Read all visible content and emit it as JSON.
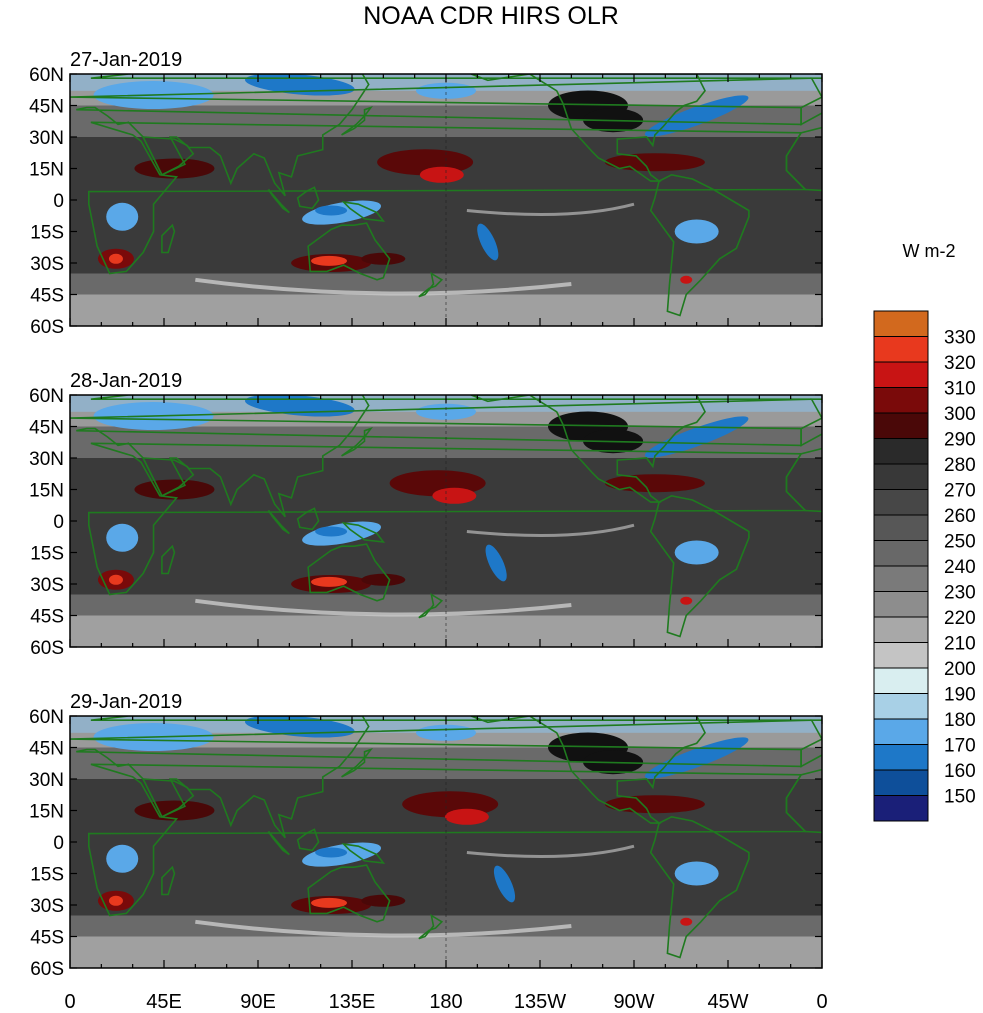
{
  "title": "NOAA CDR HIRS OLR",
  "units": "W m-2",
  "lat_ticks": [
    "60N",
    "45N",
    "30N",
    "15N",
    "0",
    "15S",
    "30S",
    "45S",
    "60S"
  ],
  "lon_ticks": [
    "0",
    "45E",
    "90E",
    "135E",
    "180",
    "135W",
    "90W",
    "45W",
    "0"
  ],
  "panels": [
    {
      "date": "27-Jan-2019"
    },
    {
      "date": "28-Jan-2019"
    },
    {
      "date": "29-Jan-2019"
    }
  ],
  "colorbar": {
    "labels": [
      "330",
      "320",
      "310",
      "300",
      "290",
      "280",
      "270",
      "260",
      "250",
      "240",
      "230",
      "220",
      "210",
      "200",
      "190",
      "180",
      "170",
      "160",
      "150"
    ],
    "colors": [
      "#d2691e",
      "#e8391e",
      "#c81414",
      "#7a0a0a",
      "#4a0808",
      "#2a2a2a",
      "#383838",
      "#474747",
      "#575757",
      "#686868",
      "#7a7a7a",
      "#8d8d8d",
      "#a8a8a8",
      "#c4c4c4",
      "#d9eef0",
      "#a8d0e6",
      "#5aa8e8",
      "#1e78c8",
      "#0e4f9a",
      "#1a1f78"
    ]
  },
  "map": {
    "land_color": "#1f7a1f",
    "extent": {
      "lon": [
        0,
        360
      ],
      "lat": [
        -60,
        60
      ]
    }
  }
}
